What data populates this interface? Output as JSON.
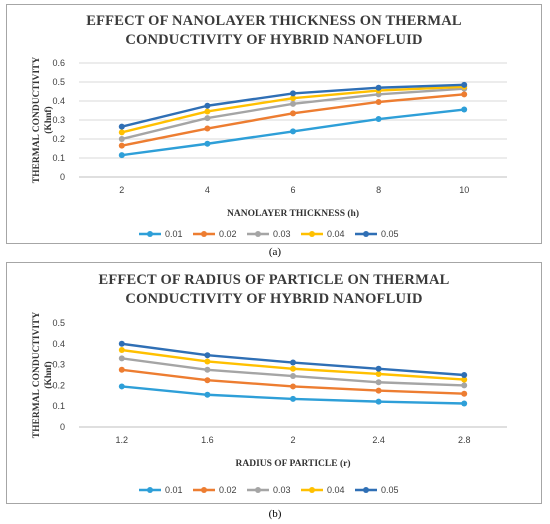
{
  "captions": [
    "(a)",
    "(b)"
  ],
  "chart_data": [
    {
      "type": "line",
      "title_lines": [
        "EFFECT OF NANOLAYER THICKNESS ON THERMAL",
        "CONDUCTIVITY  OF HYBRID NANOFLUID"
      ],
      "xlabel": "NANOLAYER THICKNESS (h)",
      "ylabel_lines": [
        "THERMAL  CONDUCTIVITY",
        "(Khnf)"
      ],
      "categories": [
        "2",
        "4",
        "6",
        "8",
        "10"
      ],
      "ylim": [
        0,
        0.6
      ],
      "yticks": [
        "0",
        "0.1",
        "0.2",
        "0.3",
        "0.4",
        "0.5",
        "0.6"
      ],
      "grid": true,
      "legend": "bottom",
      "series": [
        {
          "name": "0.01",
          "color": "#2e9fd8",
          "values": [
            0.115,
            0.175,
            0.24,
            0.305,
            0.355
          ]
        },
        {
          "name": "0.02",
          "color": "#ed7d31",
          "values": [
            0.165,
            0.255,
            0.335,
            0.395,
            0.435
          ]
        },
        {
          "name": "0.03",
          "color": "#a5a5a5",
          "values": [
            0.2,
            0.31,
            0.385,
            0.435,
            0.465
          ]
        },
        {
          "name": "0.04",
          "color": "#ffc000",
          "values": [
            0.235,
            0.345,
            0.415,
            0.455,
            0.475
          ]
        },
        {
          "name": "0.05",
          "color": "#2f6fb5",
          "values": [
            0.265,
            0.375,
            0.44,
            0.47,
            0.485
          ]
        }
      ]
    },
    {
      "type": "line",
      "title_lines": [
        "EFFECT OF RADIUS OF PARTICLE  ON THERMAL",
        "CONDUCTIVITY  OF HYBRID NANOFLUID"
      ],
      "xlabel": "RADIUS OF PARTICLE (r)",
      "ylabel_lines": [
        "THERMAL  CONDUCTIVITY",
        "(Khnf)"
      ],
      "categories": [
        "1.2",
        "1.6",
        "2",
        "2.4",
        "2.8"
      ],
      "ylim": [
        0,
        0.5
      ],
      "yticks": [
        "0",
        "0.1",
        "0.2",
        "0.3",
        "0.4",
        "0.5"
      ],
      "grid": false,
      "legend": "bottom",
      "series": [
        {
          "name": "0.01",
          "color": "#2e9fd8",
          "values": [
            0.195,
            0.155,
            0.135,
            0.122,
            0.113
          ]
        },
        {
          "name": "0.02",
          "color": "#ed7d31",
          "values": [
            0.275,
            0.225,
            0.195,
            0.175,
            0.16
          ]
        },
        {
          "name": "0.03",
          "color": "#a5a5a5",
          "values": [
            0.33,
            0.275,
            0.245,
            0.215,
            0.2
          ]
        },
        {
          "name": "0.04",
          "color": "#ffc000",
          "values": [
            0.37,
            0.315,
            0.28,
            0.255,
            0.228
          ]
        },
        {
          "name": "0.05",
          "color": "#2f6fb5",
          "values": [
            0.4,
            0.345,
            0.31,
            0.28,
            0.25
          ]
        }
      ]
    }
  ]
}
